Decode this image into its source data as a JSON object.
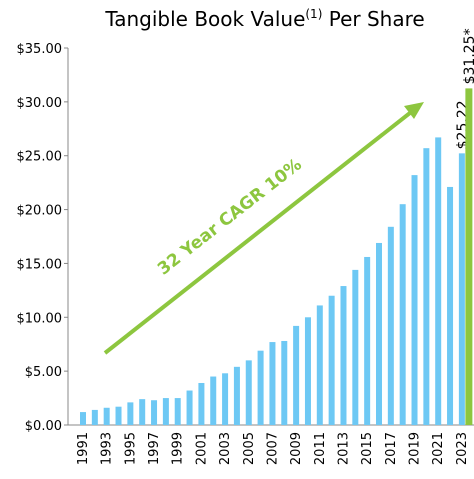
{
  "chart_data": {
    "type": "bar",
    "title": "Tangible Book Value",
    "title_superscript": "(1)",
    "title_suffix": " Per Share",
    "annotation": "32 Year CAGR 10%",
    "categories": [
      "1991",
      null,
      "1993",
      null,
      "1995",
      null,
      "1997",
      null,
      "1999",
      null,
      "2001",
      null,
      "2003",
      null,
      "2005",
      null,
      "2007",
      null,
      "2009",
      null,
      "2011",
      null,
      "2013",
      null,
      "2015",
      null,
      "2017",
      null,
      "2019",
      null,
      "2021",
      null,
      "2023"
    ],
    "series": [
      {
        "color": "#6dc8f4",
        "values": [
          1.2,
          1.4,
          1.6,
          1.7,
          2.1,
          2.4,
          2.3,
          2.5,
          2.5,
          3.2,
          3.9,
          4.5,
          4.8,
          5.4,
          6.0,
          6.9,
          7.7,
          7.8,
          9.2,
          10.0,
          11.1,
          12.0,
          12.9,
          14.4,
          15.6,
          16.9,
          18.4,
          20.5,
          23.2,
          25.7,
          26.7,
          22.1,
          25.22
        ],
        "value_labels": [
          null,
          null,
          null,
          null,
          null,
          null,
          null,
          null,
          null,
          null,
          null,
          null,
          null,
          null,
          null,
          null,
          null,
          null,
          null,
          null,
          null,
          null,
          null,
          null,
          null,
          null,
          null,
          null,
          null,
          null,
          null,
          null,
          "$25.22"
        ]
      },
      {
        "color": "#8dc63f",
        "values": [
          null,
          null,
          null,
          null,
          null,
          null,
          null,
          null,
          null,
          null,
          null,
          null,
          null,
          null,
          null,
          null,
          null,
          null,
          null,
          null,
          null,
          null,
          null,
          null,
          null,
          null,
          null,
          null,
          null,
          null,
          null,
          null,
          31.25
        ],
        "value_labels": [
          null,
          null,
          null,
          null,
          null,
          null,
          null,
          null,
          null,
          null,
          null,
          null,
          null,
          null,
          null,
          null,
          null,
          null,
          null,
          null,
          null,
          null,
          null,
          null,
          null,
          null,
          null,
          null,
          null,
          null,
          null,
          null,
          "$31.25*"
        ]
      }
    ],
    "ylim": [
      0,
      35
    ],
    "yticks": [
      {
        "value": 0,
        "label": "$0.00"
      },
      {
        "value": 5,
        "label": "$5.00"
      },
      {
        "value": 10,
        "label": "$10.00"
      },
      {
        "value": 15,
        "label": "$15.00"
      },
      {
        "value": 20,
        "label": "$20.00"
      },
      {
        "value": 25,
        "label": "$25.00"
      },
      {
        "value": 30,
        "label": "$30.00"
      },
      {
        "value": 35,
        "label": "$35.00"
      }
    ],
    "grid": false
  }
}
